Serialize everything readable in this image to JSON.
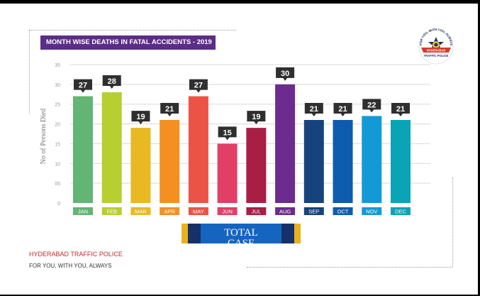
{
  "chart_data": {
    "type": "bar",
    "title": "MONTH WISE DEATHS IN FATAL ACCIDENTS - 2019",
    "xlabel": "",
    "ylabel": "No of Persons Died",
    "ylim": [
      0,
      35
    ],
    "yticks": [
      "35",
      "30",
      "25",
      "20",
      "15",
      "10",
      "05",
      "0"
    ],
    "grid": true,
    "categories": [
      "JAN",
      "FEB",
      "MAR",
      "APR",
      "MAY",
      "JUN",
      "JUL",
      "AUG",
      "SEP",
      "OCT",
      "NOV",
      "DEC"
    ],
    "values": [
      27,
      28,
      19,
      21,
      27,
      15,
      19,
      30,
      21,
      21,
      22,
      21
    ],
    "colors": [
      "#62b572",
      "#b7cf2f",
      "#e8b923",
      "#f39021",
      "#ec5347",
      "#e23f67",
      "#a81e45",
      "#6c2c8e",
      "#17437d",
      "#0d5cad",
      "#139ad6",
      "#0aa4b6"
    ]
  },
  "total_banner": {
    "label": "TOTAL",
    "cut_text": "CASE"
  },
  "footer": {
    "organization": "HYDERABAD TRAFFIC POLICE",
    "tagline": "FOR YOU, WITH YOU, ALWAYS"
  },
  "logo": {
    "icon": "hyderabad-traffic-police-emblem",
    "arc_text": "FOR YOU, WITH YOU, ALWAYS",
    "ribbon_text": "HYDERABAD",
    "bottom_text": "TRAFFIC POLICE"
  }
}
